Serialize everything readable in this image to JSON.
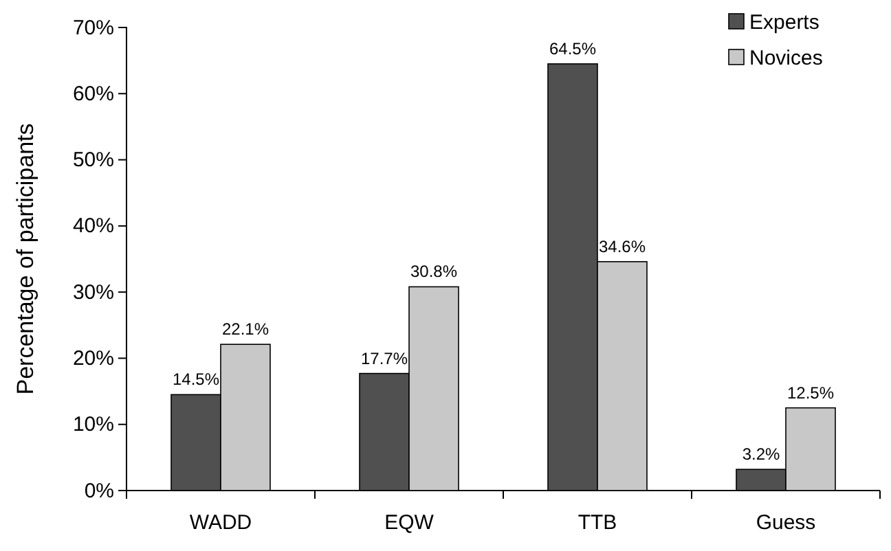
{
  "chart_data": {
    "type": "bar",
    "ylabel": "Percentage of participants",
    "categories": [
      "WADD",
      "EQW",
      "TTB",
      "Guess"
    ],
    "series": [
      {
        "name": "Experts",
        "color": "#505050",
        "values": [
          14.5,
          17.7,
          64.5,
          3.2
        ],
        "value_labels": [
          "14.5%",
          "17.7%",
          "64.5%",
          "3.2%"
        ]
      },
      {
        "name": "Novices",
        "color": "#c8c8c8",
        "values": [
          22.1,
          30.8,
          34.6,
          12.5
        ],
        "value_labels": [
          "22.1%",
          "30.8%",
          "34.6%",
          "12.5%"
        ]
      }
    ],
    "ylim": [
      0,
      70
    ],
    "yticks": [
      {
        "value": 0,
        "label": "0%"
      },
      {
        "value": 10,
        "label": "10%"
      },
      {
        "value": 20,
        "label": "20%"
      },
      {
        "value": 30,
        "label": "30%"
      },
      {
        "value": 40,
        "label": "40%"
      },
      {
        "value": 50,
        "label": "50%"
      },
      {
        "value": 60,
        "label": "60%"
      },
      {
        "value": 70,
        "label": "70%"
      }
    ],
    "grid": false,
    "legend": "top right"
  }
}
